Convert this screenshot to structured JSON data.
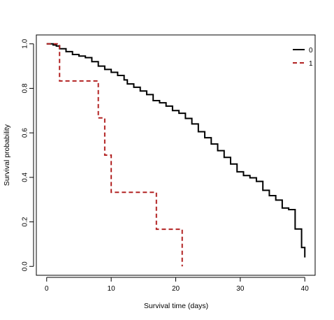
{
  "chart_data": {
    "type": "line",
    "title": "",
    "xlabel": "Survival time (days)",
    "ylabel": "Survival probability",
    "xlim": [
      -1.6,
      41.6
    ],
    "ylim": [
      -0.04,
      1.04
    ],
    "xticks": [
      0,
      10,
      20,
      30,
      40
    ],
    "xtick_labels": [
      "0",
      "10",
      "20",
      "30",
      "40"
    ],
    "yticks": [
      0.0,
      0.2,
      0.4,
      0.6,
      0.8,
      1.0
    ],
    "ytick_labels": [
      "0.0",
      "0.2",
      "0.4",
      "0.6",
      "0.8",
      "1.0"
    ],
    "grid": false,
    "legend_position": "top-right",
    "step": true,
    "series": [
      {
        "name": "0",
        "color": "#000000",
        "dash": "solid",
        "points": [
          [
            0,
            1.0
          ],
          [
            1,
            0.995
          ],
          [
            1.5,
            0.99
          ],
          [
            2,
            0.978
          ],
          [
            3,
            0.965
          ],
          [
            4,
            0.952
          ],
          [
            5,
            0.945
          ],
          [
            6,
            0.938
          ],
          [
            7,
            0.92
          ],
          [
            8,
            0.9
          ],
          [
            9,
            0.885
          ],
          [
            10,
            0.872
          ],
          [
            11,
            0.858
          ],
          [
            12,
            0.838
          ],
          [
            12.5,
            0.82
          ],
          [
            13.5,
            0.805
          ],
          [
            14.5,
            0.788
          ],
          [
            15.5,
            0.772
          ],
          [
            16.5,
            0.745
          ],
          [
            17.5,
            0.735
          ],
          [
            18.5,
            0.72
          ],
          [
            19.5,
            0.7
          ],
          [
            20.5,
            0.688
          ],
          [
            21.5,
            0.665
          ],
          [
            22.5,
            0.64
          ],
          [
            23.5,
            0.605
          ],
          [
            24.5,
            0.578
          ],
          [
            25.5,
            0.55
          ],
          [
            26.5,
            0.52
          ],
          [
            27.5,
            0.49
          ],
          [
            28.5,
            0.46
          ],
          [
            29.5,
            0.425
          ],
          [
            30.5,
            0.408
          ],
          [
            31.5,
            0.398
          ],
          [
            32.5,
            0.382
          ],
          [
            33.5,
            0.342
          ],
          [
            34.5,
            0.318
          ],
          [
            35.5,
            0.298
          ],
          [
            36.5,
            0.262
          ],
          [
            37.5,
            0.255
          ],
          [
            38.5,
            0.168
          ],
          [
            39.5,
            0.085
          ],
          [
            40,
            0.04
          ]
        ]
      },
      {
        "name": "1",
        "color": "#b22222",
        "dash": "dashed",
        "points": [
          [
            0,
            1.0
          ],
          [
            2,
            0.833
          ],
          [
            8,
            0.667
          ],
          [
            9,
            0.5
          ],
          [
            10,
            0.333
          ],
          [
            17,
            0.167
          ],
          [
            21,
            0.0
          ]
        ]
      }
    ]
  }
}
